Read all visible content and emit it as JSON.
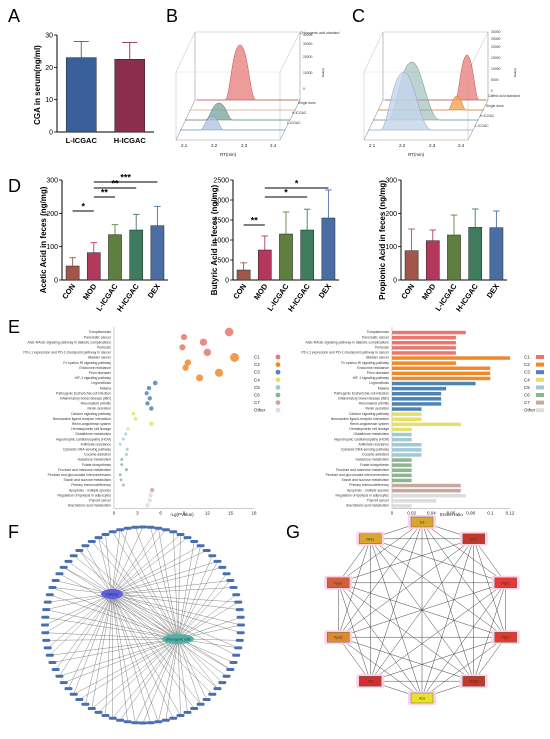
{
  "panel_labels": [
    "A",
    "B",
    "C",
    "D",
    "E",
    "F",
    "G"
  ],
  "chart_data": [
    {
      "id": "A",
      "type": "bar",
      "ylabel": "CGA in serum(ng/ml)",
      "ylim": [
        0,
        30
      ],
      "yticks": [
        0,
        10,
        20,
        30
      ],
      "categories": [
        "L-ICGAC",
        "H-ICGAC"
      ],
      "values": [
        23,
        22.5
      ],
      "errors": [
        5,
        5.2
      ],
      "colors": [
        "#3a5f99",
        "#8b2e4d"
      ]
    },
    {
      "id": "B",
      "type": "area",
      "xlabel": "RT(min)",
      "zlabel": "Intens",
      "xticks": [
        "2.1",
        "2.2",
        "2.3",
        "2.4"
      ],
      "zticks": [
        "0",
        "10000",
        "20000",
        "30000",
        "40000"
      ],
      "series": [
        "Chlorogenic acid standard",
        "Single dose",
        "H-ICGAC",
        "L-ICGAC"
      ]
    },
    {
      "id": "C",
      "type": "area",
      "xlabel": "RT(min)",
      "zlabel": "Intens",
      "xticks": [
        "2.1",
        "2.2",
        "2.3",
        "2.4"
      ],
      "zticks": [
        "0",
        "5000",
        "10000",
        "15000",
        "20000",
        "25000",
        "30000"
      ],
      "series": [
        "Caffeic acid standard",
        "Single dose",
        "H-ICGAC",
        "L-ICGAC"
      ]
    },
    {
      "id": "D1",
      "type": "bar",
      "ylabel": "Acetic Acid in feces (ng/mg)",
      "ylim": [
        0,
        300
      ],
      "yticks": [
        0,
        100,
        200,
        300
      ],
      "categories": [
        "CON",
        "MOD",
        "L-ICGAC",
        "H-ICGAC",
        "DEX"
      ],
      "values": [
        42,
        82,
        136,
        150,
        163
      ],
      "errors": [
        25,
        30,
        30,
        47,
        58
      ],
      "significance": [
        {
          "from": 0,
          "to": 1,
          "label": "*"
        },
        {
          "from": 1,
          "to": 2,
          "label": "**"
        },
        {
          "from": 1,
          "to": 3,
          "label": "**"
        },
        {
          "from": 1,
          "to": 4,
          "label": "***"
        }
      ]
    },
    {
      "id": "D2",
      "type": "bar",
      "ylabel": "Butyric Acid in feces (ng/mg)",
      "ylim": [
        0,
        2500
      ],
      "yticks": [
        0,
        500,
        1000,
        1500,
        2000,
        2500
      ],
      "categories": [
        "CON",
        "MOD",
        "L-ICGAC",
        "H-ICGAC",
        "DEX"
      ],
      "values": [
        250,
        750,
        1150,
        1250,
        1550
      ],
      "errors": [
        180,
        350,
        550,
        520,
        700
      ],
      "significance": [
        {
          "from": 0,
          "to": 1,
          "label": "**"
        },
        {
          "from": 1,
          "to": 3,
          "label": "*"
        },
        {
          "from": 1,
          "to": 4,
          "label": "*"
        }
      ]
    },
    {
      "id": "D3",
      "type": "bar",
      "ylabel": "Propionic Acid in feces (ng/mg)",
      "ylim": [
        0,
        300
      ],
      "yticks": [
        0,
        100,
        200,
        300
      ],
      "categories": [
        "CON",
        "MOD",
        "L-ICGAC",
        "H-ICGAC",
        "DEX"
      ],
      "values": [
        88,
        118,
        135,
        158,
        157
      ],
      "errors": [
        65,
        32,
        60,
        55,
        50
      ]
    },
    {
      "id": "E",
      "type": "scatter",
      "xlabel": "-Lg(PValue)",
      "xlim": [
        0,
        18
      ],
      "xticks": [
        0,
        3,
        6,
        9,
        12,
        15,
        18
      ],
      "x2label": "Enrich ratio",
      "x2ticks": [
        "0",
        "0.02",
        "0.04",
        "0.06",
        "0.08",
        "0.1",
        "0.12"
      ],
      "legend": [
        "C1",
        "C2",
        "C3",
        "C4",
        "C5",
        "C6",
        "C7",
        "Other"
      ],
      "legend_colors": [
        "#e8786f",
        "#ee8a2c",
        "#4c84b8",
        "#e6df6a",
        "#9fcad6",
        "#8db58f",
        "#c9a8a0",
        "#dddddd"
      ],
      "pathways": [
        "Toxoplasmosis",
        "Pancreatic cancer",
        "AGE-RAGE signaling pathway in diabetic complications",
        "Pertussis",
        "PD-L1 expression and PD-1 checkpoint pathway in cancer",
        "Bladder cancer",
        "Fc epsilon RI signaling pathway",
        "Endocrine resistance",
        "Prion diseases",
        "HIF-1 signaling pathway",
        "Legionellosis",
        "Malaria",
        "Pathogenic Escherichia coli infection",
        "Inflammatory bowel disease (IBD)",
        "Rheumatoid arthritis",
        "Renin secretion",
        "Calcium signaling pathway",
        "Neuroactive ligand-receptor interaction",
        "Renin-angiotensin system",
        "Hematopoietic cell lineage",
        "Glutathione metabolism",
        "Hypertrophic cardiomyopathy (HCM)",
        "Antifolate resistance",
        "Cytosolic DNA-sensing pathway",
        "Cocaine addiction",
        "Galactose metabolism",
        "Folate biosynthesis",
        "Fructose and mannose metabolism",
        "Pentose and glucuronate interconversions",
        "Starch and sucrose metabolism",
        "Primary immunodeficiency",
        "Apoptosis - multiple species",
        "Regulation of lipolysis in adipocytes",
        "Thyroid cancer",
        "Arachidonic acid metabolism"
      ],
      "neglog_p": [
        14.8,
        9,
        11.5,
        8.8,
        12,
        15.5,
        9.5,
        9.2,
        13.5,
        11,
        5.3,
        4.5,
        4.2,
        4.6,
        4.3,
        4.8,
        2.5,
        2.8,
        4.8,
        1.8,
        1.5,
        1.2,
        0.8,
        1.7,
        1.6,
        1.0,
        1.0,
        1.6,
        0.8,
        0.9,
        1.2,
        4.9,
        4.7,
        4.6,
        4.3
      ],
      "enrich_ratio": [
        0.075,
        0.065,
        0.065,
        0.065,
        0.065,
        0.12,
        0.065,
        0.1,
        0.1,
        0.1,
        0.085,
        0.055,
        0.05,
        0.05,
        0.05,
        0.03,
        0.03,
        0.03,
        0.07,
        0.02,
        0.02,
        0.02,
        0.03,
        0.03,
        0.03,
        0.02,
        0.02,
        0.02,
        0.02,
        0.02,
        0.07,
        0.07,
        0.075,
        0.045,
        0.02
      ]
    }
  ],
  "network_f": {
    "hubs": [
      "caffeine",
      "chlorogenic acid"
    ],
    "outer_node_count": 80
  },
  "network_g": {
    "nodes": [
      "IL6",
      "Esr1",
      "Ptgs2",
      "Ptgs1",
      "Mmp9",
      "Aca",
      "Tnf",
      "Ppary",
      "Nos2",
      "Ntrk1"
    ]
  }
}
